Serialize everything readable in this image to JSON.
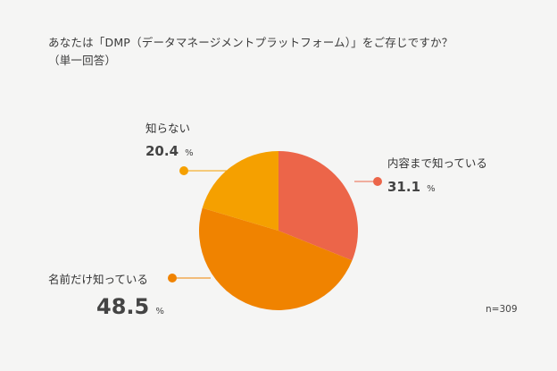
{
  "title_lines": [
    "あなたは「DMP（データマネージメントプラットフォーム）」をご存じですか？",
    "（単一回答）"
  ],
  "n_label": "n=309",
  "colors": {
    "background": "#f5f5f4",
    "slice_1": "#ec6549",
    "slice_2": "#f08300",
    "slice_3": "#f5a000"
  },
  "chart_data": {
    "type": "pie",
    "unit": "%",
    "slices": [
      {
        "label": "内容まで知っている",
        "value": 31.1,
        "value_text": "31.1",
        "color": "#ec6549"
      },
      {
        "label": "名前だけ知っている",
        "value": 48.5,
        "value_text": "48.5",
        "color": "#f08300"
      },
      {
        "label": "知らない",
        "value": 20.4,
        "value_text": "20.4",
        "color": "#f5a000"
      }
    ]
  }
}
